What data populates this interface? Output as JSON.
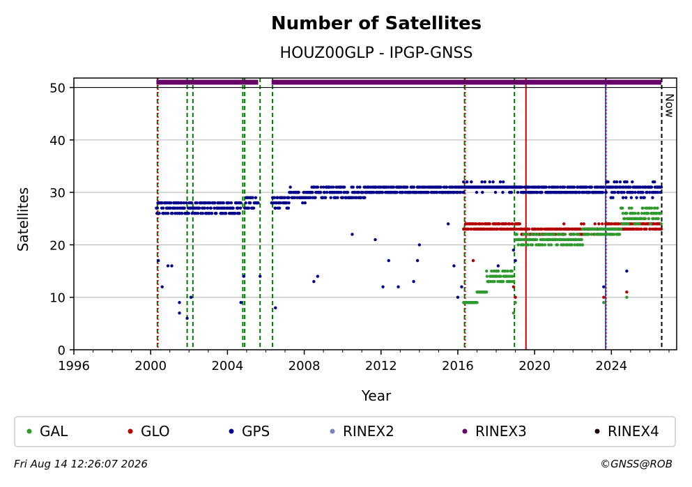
{
  "chart_data": {
    "type": "scatter",
    "title": "Number of Satellites",
    "subtitle": "HOUZ00GLP - IPGP-GNSS",
    "xlabel": "Year",
    "ylabel": "Satellites",
    "xlim": [
      1996,
      2027.4
    ],
    "ylim": [
      0,
      51.8
    ],
    "xticks": [
      1996,
      2000,
      2004,
      2008,
      2012,
      2016,
      2020,
      2024
    ],
    "yticks": [
      0,
      10,
      20,
      30,
      40,
      50
    ],
    "grid": "y",
    "now_label": "Now",
    "now_x": 2026.62,
    "legend": [
      "GAL",
      "GLO",
      "GPS",
      "RINEX2",
      "RINEX3",
      "RINEX4"
    ],
    "legend_position": "bottom",
    "colors": {
      "GAL": "#2e9a2e",
      "GLO": "#b30000",
      "GPS": "#00008b",
      "RINEX2": "#8080c0",
      "RINEX3": "#660066",
      "RINEX4": "#1a0010",
      "grid": "#b0b0b0",
      "event_green": "#007700",
      "event_red": "#cc0000",
      "event_blue": "#3355cc"
    },
    "events": [
      {
        "x": 2000.35,
        "color": "green",
        "style": "dashed"
      },
      {
        "x": 2000.38,
        "color": "red",
        "style": "dotted"
      },
      {
        "x": 2001.9,
        "color": "green",
        "style": "dashed"
      },
      {
        "x": 2002.2,
        "color": "green",
        "style": "dashed"
      },
      {
        "x": 2004.8,
        "color": "green",
        "style": "dashed"
      },
      {
        "x": 2004.9,
        "color": "green",
        "style": "dashed"
      },
      {
        "x": 2005.7,
        "color": "green",
        "style": "dashed"
      },
      {
        "x": 2006.35,
        "color": "green",
        "style": "dashed"
      },
      {
        "x": 2016.35,
        "color": "green",
        "style": "dashed"
      },
      {
        "x": 2016.38,
        "color": "red",
        "style": "dotted"
      },
      {
        "x": 2018.95,
        "color": "green",
        "style": "dashed"
      },
      {
        "x": 2019.55,
        "color": "red",
        "style": "solid"
      },
      {
        "x": 2023.7,
        "color": "blue",
        "style": "solid"
      },
      {
        "x": 2023.72,
        "color": "red",
        "style": "dotted"
      }
    ],
    "series": [
      {
        "name": "GPS",
        "segments": [
          {
            "x0": 2000.3,
            "x1": 2004.7,
            "y": 27,
            "spread": 1.5
          },
          {
            "x0": 2004.9,
            "x1": 2005.6,
            "y": 28,
            "spread": 1.5
          },
          {
            "x0": 2006.3,
            "x1": 2007.2,
            "y": 28,
            "spread": 1.2
          },
          {
            "x0": 2007.2,
            "x1": 2008.3,
            "y": 29.5,
            "spread": 1.2
          },
          {
            "x0": 2008.3,
            "x1": 2011.2,
            "y": 30,
            "spread": 1.2
          },
          {
            "x0": 2011.2,
            "x1": 2016.3,
            "y": 30.5,
            "spread": 1.0
          },
          {
            "x0": 2016.3,
            "x1": 2019.3,
            "y": 31,
            "spread": 0.6
          },
          {
            "x0": 2019.3,
            "x1": 2023.6,
            "y": 30.5,
            "spread": 1.0
          },
          {
            "x0": 2023.7,
            "x1": 2026.6,
            "y": 30.5,
            "spread": 1.2
          }
        ],
        "outliers": [
          [
            2000.4,
            17
          ],
          [
            2000.6,
            12
          ],
          [
            2000.9,
            16
          ],
          [
            2001.1,
            16
          ],
          [
            2001.5,
            7
          ],
          [
            2001.5,
            9
          ],
          [
            2001.9,
            6
          ],
          [
            2002.1,
            10
          ],
          [
            2004.7,
            9
          ],
          [
            2004.85,
            14
          ],
          [
            2005.7,
            14
          ],
          [
            2006.5,
            8
          ],
          [
            2008.5,
            13
          ],
          [
            2008.7,
            14
          ],
          [
            2010.5,
            22
          ],
          [
            2011.7,
            21
          ],
          [
            2012.1,
            12
          ],
          [
            2012.4,
            17
          ],
          [
            2012.9,
            12
          ],
          [
            2013.7,
            13
          ],
          [
            2013.9,
            17
          ],
          [
            2014.0,
            20
          ],
          [
            2015.5,
            24
          ],
          [
            2015.8,
            16
          ],
          [
            2016.0,
            10
          ],
          [
            2016.2,
            12
          ],
          [
            2018.1,
            16
          ],
          [
            2018.9,
            19
          ],
          [
            2019.0,
            17
          ],
          [
            2023.6,
            12
          ],
          [
            2024.8,
            15
          ]
        ]
      },
      {
        "name": "GLO",
        "segments": [
          {
            "x0": 2016.3,
            "x1": 2019.3,
            "y": 23.5,
            "spread": 1.0
          },
          {
            "x0": 2019.3,
            "x1": 2021.5,
            "y": 22.5,
            "spread": 0.8
          },
          {
            "x0": 2021.5,
            "x1": 2023.6,
            "y": 23,
            "spread": 0.6
          },
          {
            "x0": 2023.7,
            "x1": 2026.6,
            "y": 23.5,
            "spread": 0.6
          }
        ],
        "outliers": [
          [
            2016.8,
            17
          ],
          [
            2018.0,
            15
          ],
          [
            2018.9,
            12
          ],
          [
            2019.0,
            10
          ],
          [
            2023.6,
            10
          ],
          [
            2024.8,
            11
          ]
        ]
      },
      {
        "name": "GAL",
        "segments": [
          {
            "x0": 2016.3,
            "x1": 2017.0,
            "y": 9,
            "spread": 0.3
          },
          {
            "x0": 2017.0,
            "x1": 2017.5,
            "y": 11,
            "spread": 0.4
          },
          {
            "x0": 2017.5,
            "x1": 2018.9,
            "y": 14,
            "spread": 1.2
          },
          {
            "x0": 2019.0,
            "x1": 2022.5,
            "y": 21,
            "spread": 0.8
          },
          {
            "x0": 2022.5,
            "x1": 2024.5,
            "y": 22.5,
            "spread": 0.8
          },
          {
            "x0": 2024.5,
            "x1": 2026.6,
            "y": 25.5,
            "spread": 1.5
          }
        ],
        "outliers": [
          [
            2018.9,
            7
          ],
          [
            2019.0,
            9
          ],
          [
            2023.6,
            9
          ],
          [
            2024.8,
            10
          ]
        ]
      },
      {
        "name": "RINEX3",
        "segments": [
          {
            "x0": 2000.3,
            "x1": 2005.6,
            "y": 51,
            "spread": 0
          },
          {
            "x0": 2006.3,
            "x1": 2026.6,
            "y": 51,
            "spread": 0
          }
        ],
        "outliers": []
      }
    ]
  },
  "footer": {
    "timestamp": "Fri Aug 14 12:26:07 2026",
    "copyright": "©GNSS@ROB"
  }
}
